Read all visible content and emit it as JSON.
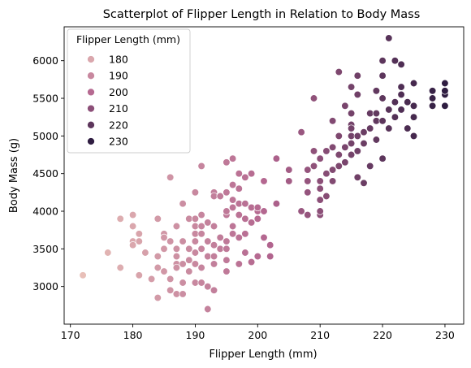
{
  "chart_data": {
    "type": "scatter",
    "title": "Scatterplot of Flipper Length in Relation to Body Mass",
    "xlabel": "Flipper Length (mm)",
    "ylabel": "Body Mass (g)",
    "xlim": [
      169,
      233
    ],
    "ylim": [
      2500,
      6450
    ],
    "xticks": [
      170,
      180,
      190,
      200,
      210,
      220,
      230
    ],
    "yticks": [
      3000,
      3500,
      4000,
      4500,
      5000,
      5500,
      6000
    ],
    "grid": false,
    "legend": {
      "title": "Flipper Length (mm)",
      "placement": "top-left",
      "entries": [
        "180",
        "190",
        "200",
        "210",
        "220",
        "230"
      ],
      "values": [
        180,
        190,
        200,
        210,
        220,
        230
      ]
    },
    "hue_range": [
      172,
      231
    ],
    "hue_colors": {
      "low": "#e8bfb8",
      "mid": "#b3658f",
      "high": "#2a1a3e"
    },
    "points": [
      [
        172,
        3150
      ],
      [
        176,
        3450
      ],
      [
        178,
        3900
      ],
      [
        178,
        3250
      ],
      [
        180,
        3950
      ],
      [
        180,
        3800
      ],
      [
        180,
        3600
      ],
      [
        180,
        3550
      ],
      [
        181,
        3700
      ],
      [
        181,
        3600
      ],
      [
        181,
        3150
      ],
      [
        182,
        3450
      ],
      [
        183,
        3100
      ],
      [
        184,
        3400
      ],
      [
        184,
        2850
      ],
      [
        184,
        3250
      ],
      [
        184,
        3900
      ],
      [
        185,
        3700
      ],
      [
        185,
        3650
      ],
      [
        185,
        3500
      ],
      [
        185,
        3200
      ],
      [
        186,
        4450
      ],
      [
        186,
        3600
      ],
      [
        186,
        2950
      ],
      [
        186,
        3100
      ],
      [
        187,
        3800
      ],
      [
        187,
        3500
      ],
      [
        187,
        3400
      ],
      [
        187,
        3300
      ],
      [
        187,
        2900
      ],
      [
        187,
        3250
      ],
      [
        188,
        3600
      ],
      [
        188,
        4100
      ],
      [
        188,
        3300
      ],
      [
        188,
        2900
      ],
      [
        188,
        3050
      ],
      [
        189,
        3500
      ],
      [
        189,
        3900
      ],
      [
        189,
        3200
      ],
      [
        189,
        3350
      ],
      [
        190,
        4250
      ],
      [
        190,
        3900
      ],
      [
        190,
        3700
      ],
      [
        190,
        3450
      ],
      [
        190,
        3050
      ],
      [
        190,
        3800
      ],
      [
        190,
        3300
      ],
      [
        190,
        3600
      ],
      [
        191,
        4600
      ],
      [
        191,
        3950
      ],
      [
        191,
        3700
      ],
      [
        191,
        3250
      ],
      [
        191,
        3050
      ],
      [
        191,
        3500
      ],
      [
        191,
        3800
      ],
      [
        192,
        3850
      ],
      [
        192,
        3400
      ],
      [
        192,
        3000
      ],
      [
        192,
        2700
      ],
      [
        192,
        3600
      ],
      [
        193,
        4250
      ],
      [
        193,
        3800
      ],
      [
        193,
        3550
      ],
      [
        193,
        3400
      ],
      [
        193,
        2950
      ],
      [
        193,
        4200
      ],
      [
        193,
        3300
      ],
      [
        194,
        4200
      ],
      [
        194,
        3650
      ],
      [
        194,
        3500
      ],
      [
        195,
        4650
      ],
      [
        195,
        4250
      ],
      [
        195,
        3950
      ],
      [
        195,
        3600
      ],
      [
        195,
        3350
      ],
      [
        195,
        4000
      ],
      [
        195,
        3500
      ],
      [
        195,
        3200
      ],
      [
        196,
        4700
      ],
      [
        196,
        4350
      ],
      [
        196,
        4050
      ],
      [
        196,
        3700
      ],
      [
        196,
        4150
      ],
      [
        196,
        3800
      ],
      [
        197,
        4500
      ],
      [
        197,
        4300
      ],
      [
        197,
        3950
      ],
      [
        197,
        3650
      ],
      [
        197,
        3300
      ],
      [
        197,
        4100
      ],
      [
        198,
        4450
      ],
      [
        198,
        4100
      ],
      [
        198,
        3700
      ],
      [
        198,
        3450
      ],
      [
        198,
        3900
      ],
      [
        199,
        4500
      ],
      [
        199,
        4050
      ],
      [
        199,
        3850
      ],
      [
        199,
        3325
      ],
      [
        200,
        4000
      ],
      [
        200,
        3400
      ],
      [
        200,
        4050
      ],
      [
        200,
        3900
      ],
      [
        201,
        4400
      ],
      [
        201,
        4000
      ],
      [
        201,
        3650
      ],
      [
        202,
        3550
      ],
      [
        202,
        3400
      ],
      [
        203,
        4700
      ],
      [
        203,
        4100
      ],
      [
        205,
        4550
      ],
      [
        205,
        4400
      ],
      [
        207,
        5050
      ],
      [
        207,
        4000
      ],
      [
        208,
        4550
      ],
      [
        208,
        4250
      ],
      [
        208,
        3950
      ],
      [
        208,
        4400
      ],
      [
        209,
        5500
      ],
      [
        209,
        4800
      ],
      [
        209,
        4600
      ],
      [
        210,
        4700
      ],
      [
        210,
        4400
      ],
      [
        210,
        4150
      ],
      [
        210,
        3950
      ],
      [
        210,
        4300
      ],
      [
        210,
        4000
      ],
      [
        211,
        4800
      ],
      [
        211,
        4500
      ],
      [
        211,
        4200
      ],
      [
        212,
        4850
      ],
      [
        212,
        4550
      ],
      [
        212,
        5200
      ],
      [
        212,
        4400
      ],
      [
        213,
        5000
      ],
      [
        213,
        4750
      ],
      [
        213,
        5850
      ],
      [
        213,
        4600
      ],
      [
        214,
        5400
      ],
      [
        214,
        4850
      ],
      [
        214,
        4650
      ],
      [
        215,
        5650
      ],
      [
        215,
        5300
      ],
      [
        215,
        5000
      ],
      [
        215,
        4750
      ],
      [
        215,
        5150
      ],
      [
        215,
        4900
      ],
      [
        215,
        5100
      ],
      [
        216,
        5000
      ],
      [
        216,
        5550
      ],
      [
        216,
        4800
      ],
      [
        216,
        4450
      ],
      [
        216,
        5800
      ],
      [
        217,
        5050
      ],
      [
        217,
        4900
      ],
      [
        217,
        4375
      ],
      [
        218,
        5300
      ],
      [
        218,
        4600
      ],
      [
        218,
        5100
      ],
      [
        219,
        5300
      ],
      [
        219,
        5200
      ],
      [
        219,
        4950
      ],
      [
        219,
        5600
      ],
      [
        220,
        5800
      ],
      [
        220,
        5200
      ],
      [
        220,
        4700
      ],
      [
        220,
        5500
      ],
      [
        220,
        6000
      ],
      [
        221,
        6300
      ],
      [
        221,
        5350
      ],
      [
        221,
        5100
      ],
      [
        222,
        6000
      ],
      [
        222,
        5450
      ],
      [
        222,
        5250
      ],
      [
        223,
        5950
      ],
      [
        223,
        5650
      ],
      [
        223,
        5550
      ],
      [
        223,
        5350
      ],
      [
        224,
        5450
      ],
      [
        224,
        5100
      ],
      [
        225,
        5700
      ],
      [
        225,
        5400
      ],
      [
        225,
        5000
      ],
      [
        225,
        5250
      ],
      [
        228,
        5400
      ],
      [
        228,
        5600
      ],
      [
        228,
        5500
      ],
      [
        230,
        5700
      ],
      [
        230,
        5550
      ],
      [
        230,
        5400
      ],
      [
        230,
        5600
      ]
    ]
  }
}
